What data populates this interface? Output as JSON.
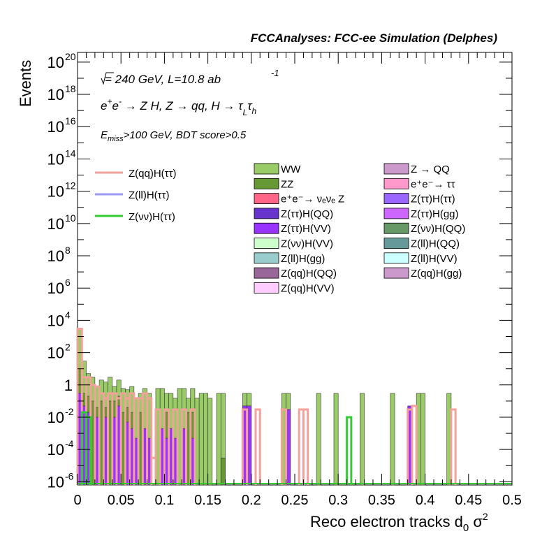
{
  "header": {
    "title": "FCCAnalyses: FCC-ee Simulation (Delphes)"
  },
  "annotations": {
    "energy_sqrt_symbol": "√s",
    "energy_text": " = 240 GeV, L=10.8 ab",
    "energy_exponent": "-1",
    "process_line": "e⁺e⁻ → Z H, Z → qq, H → τ_L τ_h",
    "process_parts": {
      "ep": "e",
      "plus": "+",
      "em": "e",
      "minus": "-",
      "zh": " → Z H, Z  → qq, H  → τ",
      "L": "L",
      "tau2": "τ",
      "h": "h"
    },
    "cuts_E": "E",
    "cuts_sub": "miss",
    "cuts_rest": ">100 GeV, BDT score>0.5"
  },
  "chart_data": {
    "type": "histogram",
    "title": "",
    "xlabel": "Reco electron tracks d",
    "xlabel_sub": "0",
    "xlabel_tail": " σ",
    "xlabel_sup": "2",
    "ylabel": "Events",
    "xlim": [
      0,
      0.5
    ],
    "ylim_log10": [
      -6.2,
      20.6
    ],
    "yscale": "log",
    "bin_width": 0.005,
    "x_ticks": [
      "0",
      "0.05",
      "0.1",
      "0.15",
      "0.2",
      "0.25",
      "0.3",
      "0.35",
      "0.4",
      "0.45",
      "0.5"
    ],
    "y_ticks": [
      {
        "base": "10",
        "exp": "-6"
      },
      {
        "base": "10",
        "exp": "-4"
      },
      {
        "base": "10",
        "exp": "-2"
      },
      {
        "base": "1",
        "exp": ""
      },
      {
        "base": "10",
        "exp": "2"
      },
      {
        "base": "10",
        "exp": "4"
      },
      {
        "base": "10",
        "exp": "6"
      },
      {
        "base": "10",
        "exp": "8"
      },
      {
        "base": "10",
        "exp": "10"
      },
      {
        "base": "10",
        "exp": "12"
      },
      {
        "base": "10",
        "exp": "14"
      },
      {
        "base": "10",
        "exp": "16"
      },
      {
        "base": "10",
        "exp": "18"
      },
      {
        "base": "10",
        "exp": "20"
      }
    ],
    "signal_legend": [
      {
        "name": "Z(qq)H(ττ)",
        "color": "#f4a09b"
      },
      {
        "name": "Z(ll)H(ττ)",
        "color": "#9b9bf4"
      },
      {
        "name": "Z(νν)H(ττ)",
        "color": "#33cc33"
      }
    ],
    "background_legend_col1": [
      {
        "name": "WW",
        "color": "#99cc66"
      },
      {
        "name": "ZZ",
        "color": "#669933"
      },
      {
        "name": "e⁺e⁻→ νₑνₑ Z",
        "color": "#ff6688"
      },
      {
        "name": "Z(ττ)H(QQ)",
        "color": "#6633cc"
      },
      {
        "name": "Z(ττ)H(VV)",
        "color": "#9933ff"
      },
      {
        "name": "Z(νν)H(VV)",
        "color": "#ccffcc"
      },
      {
        "name": "Z(ll)H(gg)",
        "color": "#99cccc"
      },
      {
        "name": "Z(qq)H(QQ)",
        "color": "#996699"
      },
      {
        "name": "Z(qq)H(VV)",
        "color": "#ffccff"
      }
    ],
    "background_legend_col2": [
      {
        "name": "Z → QQ",
        "color": "#cc99cc"
      },
      {
        "name": "e⁺e⁻→ ττ",
        "color": "#ff99cc"
      },
      {
        "name": "Z(ττ)H(ττ)",
        "color": "#9966ff"
      },
      {
        "name": "Z(ττ)H(gg)",
        "color": "#cc66ff"
      },
      {
        "name": "Z(νν)H(QQ)",
        "color": "#669966"
      },
      {
        "name": "Z(ll)H(QQ)",
        "color": "#669999"
      },
      {
        "name": "Z(ll)H(VV)",
        "color": "#ccffff"
      },
      {
        "name": "Z(qq)H(gg)",
        "color": "#cc99cc"
      }
    ],
    "ww_bins": [
      {
        "x": 0.0,
        "y": 3000
      },
      {
        "x": 0.005,
        "y": 30
      },
      {
        "x": 0.01,
        "y": 5
      },
      {
        "x": 0.015,
        "y": 3
      },
      {
        "x": 0.02,
        "y": 0.8
      },
      {
        "x": 0.025,
        "y": 2
      },
      {
        "x": 0.03,
        "y": 1.5
      },
      {
        "x": 0.035,
        "y": 3
      },
      {
        "x": 0.04,
        "y": 0.8
      },
      {
        "x": 0.045,
        "y": 2
      },
      {
        "x": 0.05,
        "y": 0.6
      },
      {
        "x": 0.055,
        "y": 0.5
      },
      {
        "x": 0.06,
        "y": 0.8
      },
      {
        "x": 0.065,
        "y": 0.15
      },
      {
        "x": 0.07,
        "y": 0.3
      },
      {
        "x": 0.075,
        "y": 0.6
      },
      {
        "x": 0.08,
        "y": 0.3
      },
      {
        "x": 0.09,
        "y": 0.6
      },
      {
        "x": 0.095,
        "y": 0.6
      },
      {
        "x": 0.1,
        "y": 0.3
      },
      {
        "x": 0.105,
        "y": 0.3
      },
      {
        "x": 0.11,
        "y": 0.15
      },
      {
        "x": 0.115,
        "y": 0.6
      },
      {
        "x": 0.12,
        "y": 0.6
      },
      {
        "x": 0.125,
        "y": 0.15
      },
      {
        "x": 0.13,
        "y": 0.6
      },
      {
        "x": 0.135,
        "y": 0.15
      },
      {
        "x": 0.14,
        "y": 0.3
      },
      {
        "x": 0.145,
        "y": 0.3
      },
      {
        "x": 0.15,
        "y": 0.15
      },
      {
        "x": 0.16,
        "y": 0.3
      },
      {
        "x": 0.165,
        "y": 0.3
      },
      {
        "x": 0.19,
        "y": 0.3
      },
      {
        "x": 0.195,
        "y": 0.3
      },
      {
        "x": 0.235,
        "y": 0.3
      },
      {
        "x": 0.24,
        "y": 0.3
      },
      {
        "x": 0.275,
        "y": 0.3
      },
      {
        "x": 0.295,
        "y": 0.3
      },
      {
        "x": 0.325,
        "y": 0.3
      },
      {
        "x": 0.36,
        "y": 0.3
      },
      {
        "x": 0.39,
        "y": 0.3
      },
      {
        "x": 0.395,
        "y": 0.3
      },
      {
        "x": 0.425,
        "y": 0.3
      }
    ],
    "zz_bins": [
      {
        "x": 0.0,
        "y": 10
      },
      {
        "x": 0.005,
        "y": 0.3
      },
      {
        "x": 0.01,
        "y": 0.2
      },
      {
        "x": 0.015,
        "y": 0.1
      },
      {
        "x": 0.02,
        "y": 0.04
      },
      {
        "x": 0.025,
        "y": 0.1
      },
      {
        "x": 0.03,
        "y": 0.04
      },
      {
        "x": 0.035,
        "y": 0.1
      },
      {
        "x": 0.04,
        "y": 0.1
      },
      {
        "x": 0.045,
        "y": 0.2
      },
      {
        "x": 0.05,
        "y": 0.02
      },
      {
        "x": 0.055,
        "y": 0.04
      },
      {
        "x": 0.06,
        "y": 0.02
      },
      {
        "x": 0.07,
        "y": 0.02
      },
      {
        "x": 0.1,
        "y": 0.02
      },
      {
        "x": 0.125,
        "y": 0.02
      },
      {
        "x": 0.13,
        "y": 0.02
      },
      {
        "x": 0.165,
        "y": 3e-05
      }
    ],
    "purple_bins": [
      {
        "x": 0.0,
        "y": 0.3
      },
      {
        "x": 0.005,
        "y": 0.05
      },
      {
        "x": 0.01,
        "y": 0.02
      },
      {
        "x": 0.02,
        "y": 0.01
      },
      {
        "x": 0.03,
        "y": 0.01
      },
      {
        "x": 0.04,
        "y": 0.01
      },
      {
        "x": 0.045,
        "y": 0.05
      },
      {
        "x": 0.055,
        "y": 0.005
      },
      {
        "x": 0.06,
        "y": 0.002
      },
      {
        "x": 0.065,
        "y": 0.0005
      },
      {
        "x": 0.075,
        "y": 0.002
      },
      {
        "x": 0.08,
        "y": 0.0005
      },
      {
        "x": 0.095,
        "y": 0.002
      },
      {
        "x": 0.1,
        "y": 0.0005
      },
      {
        "x": 0.105,
        "y": 0.002
      },
      {
        "x": 0.11,
        "y": 0.0005
      },
      {
        "x": 0.12,
        "y": 0.002
      },
      {
        "x": 0.13,
        "y": 0.0005
      },
      {
        "x": 0.19,
        "y": 0.05
      },
      {
        "x": 0.195,
        "y": 0.05
      },
      {
        "x": 0.24,
        "y": 0.03
      },
      {
        "x": 0.38,
        "y": 0.05
      }
    ],
    "signal_qqH_tautau": [
      {
        "x": 0.0,
        "y": 3000
      },
      {
        "x": 0.005,
        "y": 3
      },
      {
        "x": 0.01,
        "y": 3
      },
      {
        "x": 0.015,
        "y": 1
      },
      {
        "x": 0.02,
        "y": 0.8
      },
      {
        "x": 0.025,
        "y": 0.3
      },
      {
        "x": 0.03,
        "y": 0.15
      },
      {
        "x": 0.035,
        "y": 0.3
      },
      {
        "x": 0.04,
        "y": 0.3
      },
      {
        "x": 0.045,
        "y": 0.15
      },
      {
        "x": 0.05,
        "y": 0.3
      },
      {
        "x": 0.055,
        "y": 0.15
      },
      {
        "x": 0.06,
        "y": 0.3
      },
      {
        "x": 0.065,
        "y": 0.15
      },
      {
        "x": 0.07,
        "y": 0.15
      },
      {
        "x": 0.075,
        "y": 0.3
      },
      {
        "x": 0.08,
        "y": 0.15
      },
      {
        "x": 0.085,
        "y": 3e-05
      },
      {
        "x": 0.09,
        "y": 0.03
      },
      {
        "x": 0.1,
        "y": 0.03
      },
      {
        "x": 0.11,
        "y": 0.03
      },
      {
        "x": 0.12,
        "y": 0.03
      },
      {
        "x": 0.13,
        "y": 0.03
      },
      {
        "x": 0.19,
        "y": 0.03
      },
      {
        "x": 0.205,
        "y": 0.03
      },
      {
        "x": 0.235,
        "y": 0.03
      },
      {
        "x": 0.255,
        "y": 0.03
      },
      {
        "x": 0.26,
        "y": 0.03
      },
      {
        "x": 0.38,
        "y": 0.03
      },
      {
        "x": 0.385,
        "y": 0.05
      },
      {
        "x": 0.43,
        "y": 0.03
      }
    ],
    "signal_vvH_tautau": [
      {
        "x": 0.005,
        "y": 0.02
      },
      {
        "x": 0.01,
        "y": 0.01
      },
      {
        "x": 0.31,
        "y": 0.01
      }
    ]
  }
}
